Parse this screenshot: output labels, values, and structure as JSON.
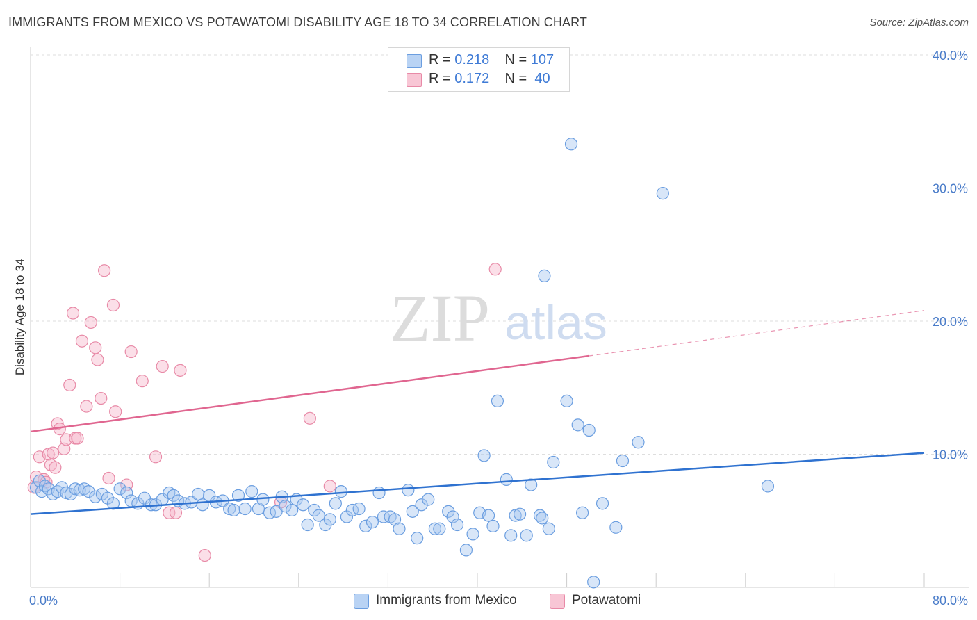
{
  "header": {
    "title": "IMMIGRANTS FROM MEXICO VS POTAWATOMI DISABILITY AGE 18 TO 34 CORRELATION CHART",
    "source": "Source: ZipAtlas.com"
  },
  "watermark": {
    "zip": "ZIP",
    "atlas": "atlas"
  },
  "legend": {
    "rows": [
      {
        "r_label": "R = ",
        "r_value": "0.218",
        "n_label": "N = ",
        "n_value": "107"
      },
      {
        "r_label": "R = ",
        "r_value": "0.172",
        "n_label": "N = ",
        "n_value": " 40"
      }
    ]
  },
  "bottom_legend": {
    "items": [
      {
        "label": "Immigrants from Mexico"
      },
      {
        "label": "Potawatomi"
      }
    ]
  },
  "colors": {
    "blue_fill": "#a9c8f0",
    "blue_stroke": "#6b9ee0",
    "blue_line": "#2f72d0",
    "pink_fill": "#f7b9cc",
    "pink_stroke": "#e88aa7",
    "pink_line": "#e06690",
    "tick_text": "#4a7cc9",
    "grid": "#dedede"
  },
  "chart_data": {
    "type": "scatter",
    "title": "IMMIGRANTS FROM MEXICO VS POTAWATOMI DISABILITY AGE 18 TO 34 CORRELATION CHART",
    "ylabel": "Disability Age 18 to 34",
    "xlabel": "",
    "xlim": [
      0,
      80
    ],
    "ylim": [
      0,
      40
    ],
    "x_tick_labels": [
      "0.0%",
      "80.0%"
    ],
    "y_ticks": [
      10,
      20,
      30,
      40
    ],
    "y_tick_labels": [
      "10.0%",
      "20.0%",
      "30.0%",
      "40.0%"
    ],
    "grid": "horizontal dashed",
    "legend_position": "top-center",
    "series": [
      {
        "name": "Immigrants from Mexico",
        "r": 0.218,
        "n": 107,
        "trend": {
          "x": [
            0,
            80
          ],
          "y": [
            5.5,
            10.1
          ]
        },
        "points": [
          [
            0.5,
            7.5
          ],
          [
            0.8,
            8.0
          ],
          [
            1.0,
            7.2
          ],
          [
            1.3,
            7.6
          ],
          [
            1.6,
            7.4
          ],
          [
            2.0,
            7.0
          ],
          [
            2.4,
            7.2
          ],
          [
            2.8,
            7.5
          ],
          [
            3.2,
            7.1
          ],
          [
            3.6,
            7.0
          ],
          [
            4.0,
            7.4
          ],
          [
            4.4,
            7.3
          ],
          [
            4.8,
            7.4
          ],
          [
            5.2,
            7.2
          ],
          [
            5.8,
            6.8
          ],
          [
            6.4,
            7.0
          ],
          [
            6.9,
            6.7
          ],
          [
            7.4,
            6.3
          ],
          [
            8.0,
            7.4
          ],
          [
            8.6,
            7.1
          ],
          [
            9.0,
            6.5
          ],
          [
            9.6,
            6.3
          ],
          [
            10.2,
            6.7
          ],
          [
            10.8,
            6.2
          ],
          [
            11.2,
            6.2
          ],
          [
            11.8,
            6.6
          ],
          [
            12.4,
            7.1
          ],
          [
            12.8,
            6.9
          ],
          [
            13.2,
            6.5
          ],
          [
            13.8,
            6.3
          ],
          [
            14.4,
            6.4
          ],
          [
            15.0,
            7.0
          ],
          [
            15.4,
            6.2
          ],
          [
            16.0,
            6.9
          ],
          [
            16.6,
            6.4
          ],
          [
            17.2,
            6.5
          ],
          [
            17.8,
            5.9
          ],
          [
            18.2,
            5.8
          ],
          [
            18.6,
            6.9
          ],
          [
            19.2,
            5.9
          ],
          [
            19.8,
            7.2
          ],
          [
            20.4,
            5.9
          ],
          [
            20.8,
            6.6
          ],
          [
            21.4,
            5.6
          ],
          [
            22.0,
            5.7
          ],
          [
            22.5,
            6.8
          ],
          [
            22.8,
            6.1
          ],
          [
            23.4,
            5.8
          ],
          [
            23.8,
            6.6
          ],
          [
            24.4,
            6.2
          ],
          [
            24.8,
            4.7
          ],
          [
            25.4,
            5.8
          ],
          [
            25.8,
            5.4
          ],
          [
            26.4,
            4.7
          ],
          [
            26.8,
            5.1
          ],
          [
            27.3,
            6.3
          ],
          [
            27.8,
            7.2
          ],
          [
            28.3,
            5.3
          ],
          [
            28.8,
            5.8
          ],
          [
            29.4,
            5.9
          ],
          [
            30.0,
            4.6
          ],
          [
            30.6,
            4.9
          ],
          [
            31.2,
            7.1
          ],
          [
            31.6,
            5.3
          ],
          [
            32.2,
            5.3
          ],
          [
            32.6,
            5.1
          ],
          [
            33.0,
            4.4
          ],
          [
            33.8,
            7.3
          ],
          [
            34.2,
            5.7
          ],
          [
            34.6,
            3.7
          ],
          [
            35.0,
            6.2
          ],
          [
            35.6,
            6.6
          ],
          [
            36.2,
            4.4
          ],
          [
            36.6,
            4.4
          ],
          [
            37.4,
            5.7
          ],
          [
            37.8,
            5.3
          ],
          [
            38.2,
            4.7
          ],
          [
            39.0,
            2.8
          ],
          [
            39.6,
            4.0
          ],
          [
            40.2,
            5.6
          ],
          [
            40.6,
            9.9
          ],
          [
            41.0,
            5.4
          ],
          [
            41.4,
            4.6
          ],
          [
            41.8,
            14.0
          ],
          [
            42.6,
            8.1
          ],
          [
            43.0,
            3.9
          ],
          [
            43.4,
            5.4
          ],
          [
            43.8,
            5.5
          ],
          [
            44.4,
            3.9
          ],
          [
            44.8,
            7.7
          ],
          [
            45.6,
            5.4
          ],
          [
            45.8,
            5.2
          ],
          [
            46.0,
            23.4
          ],
          [
            46.4,
            4.4
          ],
          [
            46.8,
            9.4
          ],
          [
            48.0,
            14.0
          ],
          [
            48.4,
            33.3
          ],
          [
            49.0,
            12.2
          ],
          [
            49.4,
            5.6
          ],
          [
            50.0,
            11.8
          ],
          [
            50.4,
            0.4
          ],
          [
            51.2,
            6.3
          ],
          [
            52.4,
            4.5
          ],
          [
            53.0,
            9.5
          ],
          [
            54.4,
            10.9
          ],
          [
            56.6,
            29.6
          ],
          [
            66.0,
            7.6
          ]
        ]
      },
      {
        "name": "Potawatomi",
        "r": 0.172,
        "n": 40,
        "trend": {
          "x": [
            0,
            80
          ],
          "y": [
            11.7,
            20.8
          ],
          "solid_until_x": 50.0
        },
        "points": [
          [
            0.3,
            7.5
          ],
          [
            0.5,
            8.3
          ],
          [
            0.8,
            9.8
          ],
          [
            1.2,
            8.1
          ],
          [
            1.4,
            7.9
          ],
          [
            1.6,
            10.0
          ],
          [
            1.8,
            9.2
          ],
          [
            2.0,
            10.1
          ],
          [
            2.2,
            9.0
          ],
          [
            2.4,
            12.3
          ],
          [
            2.6,
            11.9
          ],
          [
            3.0,
            10.4
          ],
          [
            3.2,
            11.1
          ],
          [
            3.5,
            15.2
          ],
          [
            3.8,
            20.6
          ],
          [
            4.0,
            11.2
          ],
          [
            4.2,
            11.2
          ],
          [
            4.6,
            18.5
          ],
          [
            5.0,
            13.6
          ],
          [
            5.4,
            19.9
          ],
          [
            5.8,
            18.0
          ],
          [
            6.0,
            17.1
          ],
          [
            6.3,
            14.2
          ],
          [
            6.6,
            23.8
          ],
          [
            7.0,
            8.2
          ],
          [
            7.4,
            21.2
          ],
          [
            7.6,
            13.2
          ],
          [
            8.6,
            7.7
          ],
          [
            9.0,
            17.7
          ],
          [
            10.0,
            15.5
          ],
          [
            11.2,
            9.8
          ],
          [
            11.8,
            16.6
          ],
          [
            12.4,
            5.6
          ],
          [
            13.0,
            5.6
          ],
          [
            13.4,
            16.3
          ],
          [
            15.6,
            2.4
          ],
          [
            22.4,
            6.4
          ],
          [
            25.0,
            12.7
          ],
          [
            26.8,
            7.6
          ],
          [
            41.6,
            23.9
          ]
        ]
      }
    ]
  }
}
